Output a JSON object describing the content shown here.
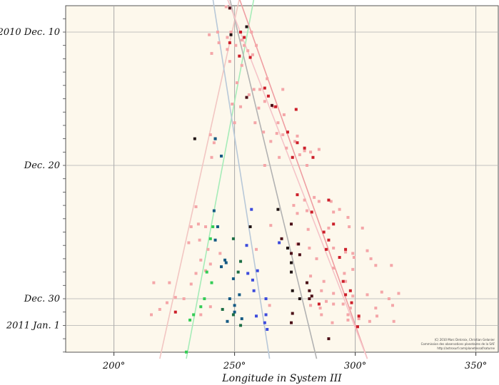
{
  "chart_data": {
    "type": "scatter",
    "xlabel": "Longitude in System III",
    "ylabel": "",
    "xlim": [
      180,
      360
    ],
    "ylim": [
      -3,
      39
    ],
    "y_reversed": true,
    "x_ticks": [
      {
        "value": 200,
        "label": "200°"
      },
      {
        "value": 250,
        "label": "250°"
      },
      {
        "value": 300,
        "label": "300°"
      },
      {
        "value": 350,
        "label": "350°"
      }
    ],
    "y_ticks": [
      {
        "value": 0,
        "label": "2010 Dec. 10"
      },
      {
        "value": 10,
        "label": "Dec. 20"
      },
      {
        "value": 20,
        "label": "Dec. 30"
      },
      {
        "value": 22,
        "label": "2011 Jan. 1"
      }
    ],
    "grid": true,
    "background": "#fdf8ec",
    "credit_lines": [
      "(C) 2010 Marc Delcroix, Christian Gelanier",
      "Commission des observations planetaires de la SAF",
      "http://astrosurf.com/planetessaf/saturne"
    ],
    "trend_lines": [
      {
        "color": "#f2c6c2",
        "from": [
          219,
          24.5
        ],
        "to": [
          252,
          -2.5
        ]
      },
      {
        "color": "#a6ecb8",
        "from": [
          230,
          24.5
        ],
        "to": [
          258,
          -2.5
        ]
      },
      {
        "color": "#b8c8d8",
        "from": [
          264.5,
          24.5
        ],
        "to": [
          241,
          -2.5
        ]
      },
      {
        "color": "#b2b2b2",
        "from": [
          284,
          24.5
        ],
        "to": [
          248,
          -2.5
        ]
      },
      {
        "color": "#ef9ea2",
        "from": [
          305,
          24.5
        ],
        "to": [
          252,
          -2.5
        ]
      },
      {
        "color": "#f5c4c8",
        "from": [
          305,
          24.5
        ],
        "to": [
          247,
          -2.5
        ]
      }
    ],
    "series": [
      {
        "color": "#f4a6a8",
        "points": [
          [
            246.5,
            -1.9
          ],
          [
            243,
            0
          ],
          [
            248.5,
            0
          ],
          [
            257,
            0
          ],
          [
            239.5,
            0.2
          ],
          [
            247,
            0.4
          ],
          [
            253,
            0.6
          ],
          [
            243.5,
            0.8
          ],
          [
            250.5,
            1
          ],
          [
            254,
            1
          ],
          [
            259,
            1
          ],
          [
            247,
            1.3
          ],
          [
            255.5,
            1.4
          ],
          [
            240.5,
            1.6
          ],
          [
            252,
            1.8
          ],
          [
            257.5,
            1.7
          ],
          [
            248,
            2.2
          ],
          [
            253,
            2.5
          ],
          [
            263.5,
            3.5
          ],
          [
            251,
            3.8
          ],
          [
            260.5,
            4.3
          ],
          [
            258,
            4.3
          ],
          [
            270,
            4.3
          ],
          [
            256,
            4.7
          ],
          [
            262.5,
            5.2
          ],
          [
            249,
            5.4
          ],
          [
            252.5,
            5.6
          ],
          [
            260,
            5.7
          ],
          [
            266,
            5.6
          ],
          [
            270.5,
            6.2
          ],
          [
            250,
            6.8
          ],
          [
            258.5,
            6.8
          ],
          [
            268,
            6.8
          ],
          [
            262,
            7.5
          ],
          [
            267.5,
            7.6
          ],
          [
            270,
            7.7
          ],
          [
            276,
            7.8
          ],
          [
            240,
            7.7
          ],
          [
            241.5,
            8.3
          ],
          [
            265,
            8.2
          ],
          [
            275,
            8.2
          ],
          [
            271.5,
            8.7
          ],
          [
            279,
            8.9
          ],
          [
            240.5,
            9.4
          ],
          [
            268.5,
            9.4
          ],
          [
            274,
            9.4
          ],
          [
            277,
            9.2
          ],
          [
            281.5,
            9.0
          ],
          [
            285,
            8.8
          ],
          [
            262.5,
            10
          ],
          [
            280,
            10
          ],
          [
            274.5,
            13.0
          ],
          [
            279,
            12.6
          ],
          [
            283,
            12.4
          ],
          [
            285,
            12.7
          ],
          [
            290,
            12.7
          ],
          [
            234,
            13.1
          ],
          [
            276,
            13.6
          ],
          [
            280,
            13.4
          ],
          [
            291,
            13.5
          ],
          [
            293.5,
            13.3
          ],
          [
            297,
            13.9
          ],
          [
            232,
            14.6
          ],
          [
            235,
            14.4
          ],
          [
            238,
            14.6
          ],
          [
            265,
            14.5
          ],
          [
            280.5,
            14.8
          ],
          [
            289,
            14.7
          ],
          [
            297.5,
            14.6
          ],
          [
            303,
            14.7
          ],
          [
            231,
            15.8
          ],
          [
            235.5,
            15.6
          ],
          [
            276,
            15.9
          ],
          [
            281,
            16.2
          ],
          [
            291,
            16.2
          ],
          [
            296,
            16.5
          ],
          [
            299,
            16.6
          ],
          [
            305,
            16.4
          ],
          [
            239,
            16.3
          ],
          [
            244,
            16.6
          ],
          [
            259,
            16.3
          ],
          [
            236,
            17.1
          ],
          [
            240,
            17.4
          ],
          [
            284,
            17.0
          ],
          [
            291,
            17.7
          ],
          [
            295.5,
            18.1
          ],
          [
            299,
            17.8
          ],
          [
            308.5,
            17.5
          ],
          [
            299.5,
            16.9
          ],
          [
            306.5,
            17.0
          ],
          [
            234,
            18.1
          ],
          [
            238,
            17.9
          ],
          [
            281.5,
            18.3
          ],
          [
            287,
            18.7
          ],
          [
            296,
            18.7
          ],
          [
            315,
            17.5
          ],
          [
            216.5,
            18.8
          ],
          [
            223,
            18.8
          ],
          [
            232,
            18.9
          ],
          [
            286,
            19.4
          ],
          [
            291,
            19.6
          ],
          [
            305,
            19.7
          ],
          [
            311,
            19.5
          ],
          [
            225.5,
            19.9
          ],
          [
            229,
            20.0
          ],
          [
            288,
            20.2
          ],
          [
            291,
            20.4
          ],
          [
            295,
            20.4
          ],
          [
            299,
            19.8
          ],
          [
            314,
            20.0
          ],
          [
            318,
            19.6
          ],
          [
            222,
            20.3
          ],
          [
            240,
            20.6
          ],
          [
            264.5,
            20.5
          ],
          [
            281.5,
            20.5
          ],
          [
            285.5,
            20.7
          ],
          [
            298,
            20.7
          ],
          [
            308.5,
            20.7
          ],
          [
            315.5,
            20.5
          ],
          [
            215.5,
            21.2
          ],
          [
            219,
            20.8
          ],
          [
            236,
            21.2
          ],
          [
            286,
            21.2
          ],
          [
            297,
            21.2
          ],
          [
            301.5,
            21.5
          ],
          [
            309,
            21.3
          ],
          [
            290.5,
            21.8
          ],
          [
            297,
            21.6
          ],
          [
            306,
            21.7
          ],
          [
            316,
            21.7
          ]
        ]
      },
      {
        "color": "#cc1f2a",
        "points": [
          [
            247.5,
            -2.0
          ],
          [
            252.5,
            0
          ],
          [
            254,
            0.4
          ],
          [
            252,
            1.8
          ],
          [
            256.5,
            1.9
          ],
          [
            248,
            0.8
          ],
          [
            262.5,
            4.2
          ],
          [
            264,
            4.8
          ],
          [
            267,
            5.6
          ],
          [
            275.5,
            5.8
          ],
          [
            272,
            7.5
          ],
          [
            276,
            8.3
          ],
          [
            279,
            8.7
          ],
          [
            274,
            9.4
          ],
          [
            282.5,
            9.4
          ],
          [
            276,
            12.2
          ],
          [
            289,
            12.6
          ],
          [
            282,
            13.5
          ],
          [
            291,
            14.4
          ],
          [
            287,
            15.0
          ],
          [
            289,
            15.6
          ],
          [
            288,
            16.3
          ],
          [
            296,
            16.3
          ],
          [
            293.5,
            16.9
          ],
          [
            295,
            18.7
          ],
          [
            298,
            19.4
          ],
          [
            296,
            19.7
          ],
          [
            285,
            20.4
          ],
          [
            225.5,
            21.0
          ],
          [
            298.5,
            20.3
          ],
          [
            301.5,
            21.3
          ],
          [
            301,
            22.1
          ]
        ]
      },
      {
        "color": "#4c1018",
        "points": [
          [
            248,
            -1.8
          ],
          [
            255,
            4.9
          ],
          [
            265.5,
            5.5
          ],
          [
            273.5,
            14.4
          ],
          [
            269.5,
            15.5
          ],
          [
            276.5,
            15.9
          ],
          [
            273.5,
            16.6
          ],
          [
            277,
            16.7
          ],
          [
            280,
            18.8
          ],
          [
            281,
            20.0
          ],
          [
            274,
            21.1
          ],
          [
            273.5,
            21.8
          ],
          [
            282,
            19.8
          ],
          [
            281,
            19.4
          ],
          [
            289,
            23.0
          ]
        ]
      },
      {
        "color": "#201414",
        "points": [
          [
            255,
            -0.4
          ],
          [
            248.5,
            0.2
          ],
          [
            233.5,
            8.0
          ],
          [
            242,
            8.0
          ],
          [
            256.5,
            14.6
          ],
          [
            268,
            13.3
          ],
          [
            272,
            16.2
          ],
          [
            273.5,
            17.3
          ],
          [
            273.5,
            18.0
          ],
          [
            274,
            19.4
          ],
          [
            277,
            20.0
          ]
        ]
      },
      {
        "color": "#3d4bdc",
        "points": [
          [
            257,
            13.3
          ],
          [
            255,
            16.0
          ],
          [
            268.5,
            15.8
          ],
          [
            259.5,
            17.9
          ],
          [
            258,
            19.4
          ],
          [
            263,
            20.0
          ],
          [
            259,
            21.3
          ],
          [
            263,
            21.2
          ],
          [
            262.5,
            21.8
          ],
          [
            264,
            24.1
          ],
          [
            255.5,
            18.1
          ],
          [
            257.5,
            18.6
          ],
          [
            263.5,
            22.3
          ]
        ]
      },
      {
        "color": "#155a84",
        "points": [
          [
            242,
            8.0
          ],
          [
            244.5,
            9.3
          ],
          [
            241.5,
            13.4
          ],
          [
            243,
            14.6
          ],
          [
            242,
            15.6
          ],
          [
            246,
            17.1
          ],
          [
            246.5,
            17.3
          ],
          [
            244.5,
            17.6
          ],
          [
            248,
            20.0
          ],
          [
            250,
            20.5
          ],
          [
            253,
            21.5
          ],
          [
            247,
            21.7
          ],
          [
            245.5,
            24.1
          ],
          [
            250,
            21.0
          ],
          [
            252,
            19.7
          ],
          [
            249.5,
            18.5
          ]
        ]
      },
      {
        "color": "#1d6e44",
        "points": [
          [
            249.5,
            15.5
          ],
          [
            252.5,
            17.2
          ],
          [
            251.5,
            18.0
          ],
          [
            245,
            20.8
          ],
          [
            249.5,
            21.2
          ],
          [
            252.5,
            22.0
          ]
        ]
      },
      {
        "color": "#33cc55",
        "points": [
          [
            241,
            14.6
          ],
          [
            240,
            15.5
          ],
          [
            238.5,
            18.0
          ],
          [
            240.5,
            18.8
          ],
          [
            237.5,
            20.0
          ],
          [
            236,
            20.6
          ],
          [
            233,
            21.2
          ],
          [
            231.5,
            21.6
          ],
          [
            230,
            24.0
          ]
        ]
      }
    ]
  }
}
